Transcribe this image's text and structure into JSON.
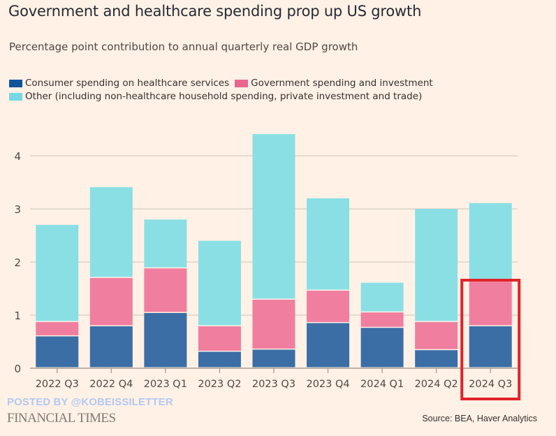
{
  "header": {
    "title": "Government and healthcare spending prop up US growth",
    "subtitle": "Percentage point contribution to annual quarterly real GDP growth"
  },
  "legend": [
    {
      "label": "Consumer spending on healthcare services",
      "color": "#0f5499"
    },
    {
      "label": "Government spending and investment",
      "color": "#e8668f"
    },
    {
      "label": "Other (including non-healthcare household spending, private investment and trade)",
      "color": "#75d8e3"
    }
  ],
  "footer": {
    "watermark": "POSTED BY @KOBEISSILETTER",
    "brand": "FINANCIAL TIMES",
    "source": "Source: BEA, Haver Analytics"
  },
  "highlight": {
    "category": "2024 Q3",
    "color": "#e0232a"
  },
  "chart_data": {
    "type": "bar",
    "stacked": true,
    "title": "Government and healthcare spending prop up US growth",
    "subtitle": "Percentage point contribution to annual quarterly real GDP growth",
    "xlabel": "",
    "ylabel": "",
    "ylim": [
      0,
      4.5
    ],
    "yticks": [
      0,
      1,
      2,
      3,
      4
    ],
    "grid": true,
    "legend_position": "top-left",
    "categories": [
      "2022 Q3",
      "2022 Q4",
      "2023 Q1",
      "2023 Q2",
      "2023 Q3",
      "2023 Q4",
      "2024 Q1",
      "2024 Q2",
      "2024 Q3"
    ],
    "series": [
      {
        "name": "Consumer spending on healthcare services",
        "color": "#3a6ea5",
        "values": [
          0.6,
          0.79,
          1.04,
          0.31,
          0.35,
          0.85,
          0.76,
          0.34,
          0.79
        ]
      },
      {
        "name": "Government spending and investment",
        "color": "#f07e9f",
        "values": [
          0.27,
          0.91,
          0.84,
          0.48,
          0.94,
          0.61,
          0.29,
          0.53,
          0.84
        ]
      },
      {
        "name": "Other (including non-healthcare household spending, private investment and trade)",
        "color": "#8adfe4",
        "values": [
          1.83,
          1.71,
          0.92,
          1.61,
          3.12,
          1.74,
          0.56,
          2.13,
          1.48
        ]
      }
    ],
    "annotations": [
      "Red box highlighting 2024 Q3"
    ]
  }
}
